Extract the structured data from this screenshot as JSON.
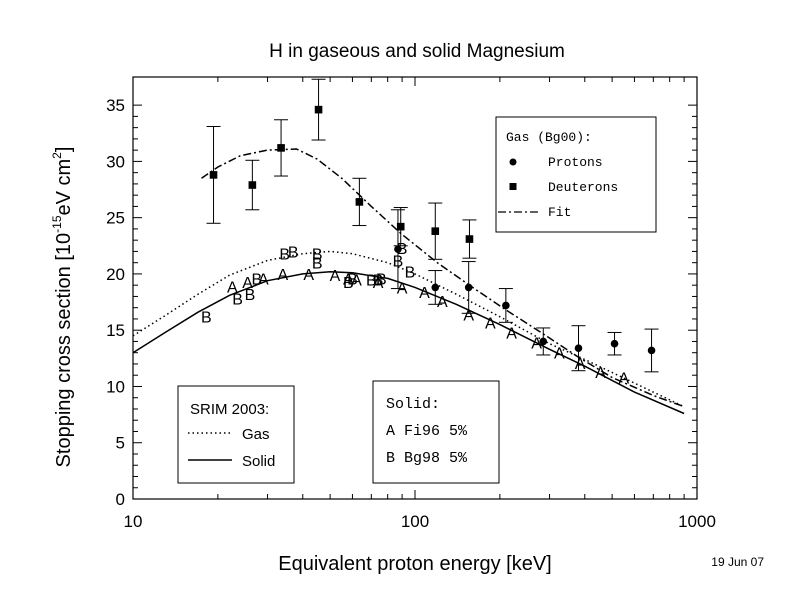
{
  "chart_data": {
    "type": "scatter",
    "title": "H in gaseous and solid Magnesium",
    "xlabel": "Equivalent proton energy [keV]",
    "ylabel": {
      "prefix": "Stopping cross section [10",
      "sup1": "-15",
      "middle": "eV cm",
      "sup2": "2",
      "suffix": "]"
    },
    "x_scale": "log",
    "xlim": [
      10,
      1000
    ],
    "ylim": [
      0,
      37.5
    ],
    "x_ticks": [
      {
        "value": 10,
        "label": "10"
      },
      {
        "value": 100,
        "label": "100"
      },
      {
        "value": 1000,
        "label": "1000"
      }
    ],
    "y_ticks": [
      {
        "value": 0,
        "label": "0"
      },
      {
        "value": 5,
        "label": "5"
      },
      {
        "value": 10,
        "label": "10"
      },
      {
        "value": 15,
        "label": "15"
      },
      {
        "value": 20,
        "label": "20"
      },
      {
        "value": 25,
        "label": "25"
      },
      {
        "value": 30,
        "label": "30"
      },
      {
        "value": 35,
        "label": "35"
      }
    ],
    "date_stamp": "19 Jun 07",
    "legend_gas": {
      "title": "Gas (Bg00):",
      "entries": [
        "Protons",
        "Deuterons",
        "Fit"
      ]
    },
    "legend_srim": {
      "title": "SRIM 2003:",
      "entries": [
        "Gas",
        "Solid"
      ]
    },
    "legend_solid": {
      "title": "Solid:",
      "entries": [
        "A Fi96 5%",
        "B Bg98 5%"
      ]
    },
    "series": [
      {
        "name": "Protons",
        "marker": "circle",
        "points": [
          {
            "x": 87,
            "y": 22.2,
            "err": 3.5
          },
          {
            "x": 118,
            "y": 18.8,
            "err": 1.5
          },
          {
            "x": 155,
            "y": 18.8,
            "err": 2.3
          },
          {
            "x": 210,
            "y": 17.2,
            "err": 1.5
          },
          {
            "x": 285,
            "y": 14.0,
            "err": 1.2
          },
          {
            "x": 380,
            "y": 13.4,
            "err": 2.0
          },
          {
            "x": 510,
            "y": 13.8,
            "err": 1.0
          },
          {
            "x": 690,
            "y": 13.2,
            "err": 1.9
          }
        ]
      },
      {
        "name": "Deuterons",
        "marker": "square",
        "points": [
          {
            "x": 19.3,
            "y": 28.8,
            "err": 4.3
          },
          {
            "x": 26.5,
            "y": 27.9,
            "err": 2.2
          },
          {
            "x": 33.5,
            "y": 31.2,
            "err": 2.5
          },
          {
            "x": 45.5,
            "y": 34.6,
            "err": 2.7
          },
          {
            "x": 63.5,
            "y": 26.4,
            "err": 2.1
          },
          {
            "x": 89,
            "y": 24.2,
            "err": 1.7
          },
          {
            "x": 118,
            "y": 23.8,
            "err": 2.5
          },
          {
            "x": 156,
            "y": 23.1,
            "err": 1.7
          }
        ]
      },
      {
        "name": "Fit",
        "style": "dash-dot",
        "points": [
          {
            "x": 17.5,
            "y": 28.5
          },
          {
            "x": 20,
            "y": 29.5
          },
          {
            "x": 24,
            "y": 30.5
          },
          {
            "x": 30,
            "y": 31.0
          },
          {
            "x": 38,
            "y": 31.1
          },
          {
            "x": 45,
            "y": 30.2
          },
          {
            "x": 55,
            "y": 28.5
          },
          {
            "x": 70,
            "y": 26.0
          },
          {
            "x": 90,
            "y": 23.5
          },
          {
            "x": 120,
            "y": 21.0
          },
          {
            "x": 160,
            "y": 18.8
          },
          {
            "x": 210,
            "y": 16.8
          },
          {
            "x": 280,
            "y": 14.8
          },
          {
            "x": 380,
            "y": 12.6
          },
          {
            "x": 500,
            "y": 10.8
          },
          {
            "x": 700,
            "y": 9.2
          },
          {
            "x": 900,
            "y": 8.2
          }
        ]
      },
      {
        "name": "Gas",
        "style": "dotted",
        "points": [
          {
            "x": 10,
            "y": 14.5
          },
          {
            "x": 13,
            "y": 16.3
          },
          {
            "x": 17,
            "y": 18.2
          },
          {
            "x": 22,
            "y": 19.9
          },
          {
            "x": 30,
            "y": 21.2
          },
          {
            "x": 40,
            "y": 21.8
          },
          {
            "x": 50,
            "y": 22.0
          },
          {
            "x": 60,
            "y": 21.8
          },
          {
            "x": 80,
            "y": 21.0
          },
          {
            "x": 100,
            "y": 20.0
          },
          {
            "x": 140,
            "y": 18.2
          },
          {
            "x": 200,
            "y": 16.2
          },
          {
            "x": 300,
            "y": 13.8
          },
          {
            "x": 400,
            "y": 12.4
          },
          {
            "x": 600,
            "y": 10.3
          },
          {
            "x": 900,
            "y": 8.2
          }
        ]
      },
      {
        "name": "Solid",
        "style": "solid",
        "points": [
          {
            "x": 10,
            "y": 13.0
          },
          {
            "x": 13,
            "y": 14.8
          },
          {
            "x": 17,
            "y": 16.6
          },
          {
            "x": 22,
            "y": 18.1
          },
          {
            "x": 30,
            "y": 19.4
          },
          {
            "x": 40,
            "y": 20.0
          },
          {
            "x": 50,
            "y": 20.2
          },
          {
            "x": 60,
            "y": 20.1
          },
          {
            "x": 80,
            "y": 19.6
          },
          {
            "x": 100,
            "y": 18.8
          },
          {
            "x": 140,
            "y": 17.3
          },
          {
            "x": 200,
            "y": 15.5
          },
          {
            "x": 300,
            "y": 13.3
          },
          {
            "x": 400,
            "y": 11.8
          },
          {
            "x": 600,
            "y": 9.5
          },
          {
            "x": 900,
            "y": 7.6
          }
        ]
      },
      {
        "name": "A Fi96 5%",
        "marker_text": "A",
        "points": [
          {
            "x": 22.5,
            "y": 18.9
          },
          {
            "x": 25.5,
            "y": 19.3
          },
          {
            "x": 29,
            "y": 19.6
          },
          {
            "x": 34,
            "y": 20.0
          },
          {
            "x": 42,
            "y": 20.0
          },
          {
            "x": 52,
            "y": 19.9
          },
          {
            "x": 58,
            "y": 19.6
          },
          {
            "x": 62,
            "y": 19.5
          },
          {
            "x": 74,
            "y": 19.3
          },
          {
            "x": 90,
            "y": 18.8
          },
          {
            "x": 108,
            "y": 18.4
          },
          {
            "x": 125,
            "y": 17.6
          },
          {
            "x": 155,
            "y": 16.4
          },
          {
            "x": 185,
            "y": 15.7
          },
          {
            "x": 220,
            "y": 14.8
          },
          {
            "x": 270,
            "y": 13.9
          },
          {
            "x": 325,
            "y": 13.0
          },
          {
            "x": 385,
            "y": 12.1
          },
          {
            "x": 455,
            "y": 11.3
          },
          {
            "x": 550,
            "y": 10.8
          }
        ]
      },
      {
        "name": "B Bg98 5%",
        "marker_text": "B",
        "points": [
          {
            "x": 18.2,
            "y": 16.2
          },
          {
            "x": 23.5,
            "y": 17.8
          },
          {
            "x": 26,
            "y": 18.2
          },
          {
            "x": 27.5,
            "y": 19.6
          },
          {
            "x": 34.5,
            "y": 21.8
          },
          {
            "x": 37,
            "y": 22.0
          },
          {
            "x": 45,
            "y": 21.8
          },
          {
            "x": 45,
            "y": 21.0
          },
          {
            "x": 58,
            "y": 19.3
          },
          {
            "x": 60,
            "y": 19.6
          },
          {
            "x": 70,
            "y": 19.5
          },
          {
            "x": 74,
            "y": 19.5
          },
          {
            "x": 76,
            "y": 19.6
          },
          {
            "x": 87,
            "y": 21.2
          },
          {
            "x": 90,
            "y": 22.3
          },
          {
            "x": 96,
            "y": 20.2
          }
        ]
      }
    ]
  }
}
